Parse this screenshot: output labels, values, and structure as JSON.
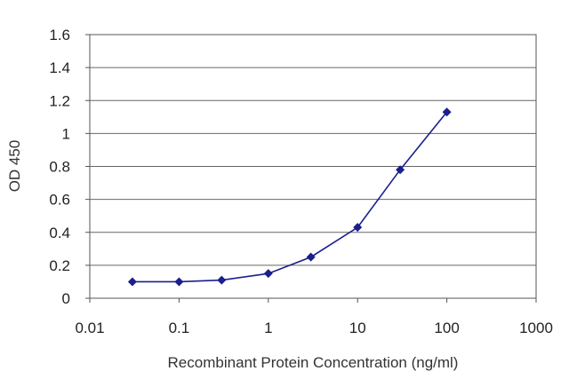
{
  "chart_data": {
    "type": "line",
    "title": "",
    "xlabel": "Recombinant Protein Concentration (ng/ml)",
    "ylabel": "OD 450",
    "x_scale": "log",
    "xlim": [
      0.01,
      1000
    ],
    "ylim": [
      0,
      1.6
    ],
    "x_ticks": [
      "0.01",
      "0.1",
      "1",
      "10",
      "100",
      "1000"
    ],
    "x_tick_values": [
      0.01,
      0.1,
      1,
      10,
      100,
      1000
    ],
    "y_ticks": [
      "0",
      "0.2",
      "0.4",
      "0.6",
      "0.8",
      "1",
      "1.2",
      "1.4",
      "1.6"
    ],
    "y_tick_values": [
      0,
      0.2,
      0.4,
      0.6,
      0.8,
      1,
      1.2,
      1.4,
      1.6
    ],
    "grid": "horizontal",
    "series": [
      {
        "color": "#1a1f8c",
        "x": [
          0.03,
          0.1,
          0.3,
          1,
          3,
          10,
          30,
          100
        ],
        "y": [
          0.1,
          0.1,
          0.11,
          0.15,
          0.25,
          0.43,
          0.78,
          1.13
        ]
      }
    ]
  }
}
